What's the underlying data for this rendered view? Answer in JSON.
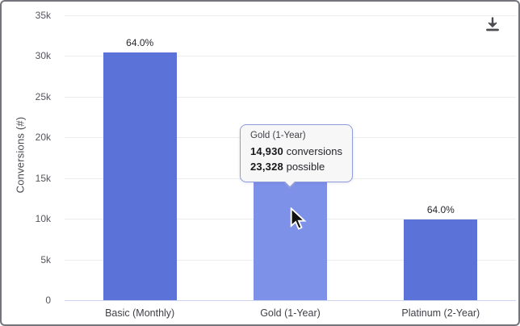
{
  "chart_data": {
    "type": "bar",
    "title": "",
    "xlabel": "",
    "ylabel": "Conversions (#)",
    "categories": [
      "Basic (Monthly)",
      "Gold (1-Year)",
      "Platinum (2-Year)"
    ],
    "values": [
      30400,
      14930,
      9950
    ],
    "bar_labels": [
      "64.0%",
      "",
      "64.0%"
    ],
    "ylim": [
      0,
      35000
    ],
    "ytick_labels": [
      "0",
      "5k",
      "10k",
      "15k",
      "20k",
      "25k",
      "30k",
      "35k"
    ],
    "ytick_values": [
      0,
      5000,
      10000,
      15000,
      20000,
      25000,
      30000,
      35000
    ],
    "grid": true,
    "legend": false,
    "bar_colors": [
      "#5b72d9",
      "#7e91e9",
      "#5b72d9"
    ],
    "highlighted_index": 1
  },
  "tooltip": {
    "title": "Gold (1-Year)",
    "conversions_value": "14,930",
    "conversions_label": "conversions",
    "possible_value": "23,328",
    "possible_label": "possible"
  },
  "toolbar": {
    "download_icon": "download"
  },
  "colors": {
    "bar_default": "#5b72d9",
    "bar_highlight": "#7e91e9",
    "gridline": "#ececec",
    "baseline": "#ccd3ef",
    "tooltip_border": "#8e9cdb",
    "tooltip_bg": "#f7f7f8",
    "card_border": "#74747c"
  }
}
